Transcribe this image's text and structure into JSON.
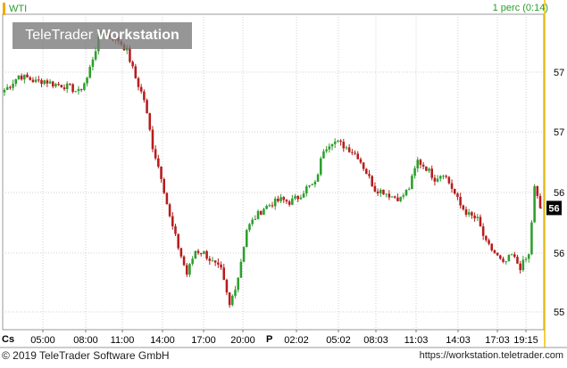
{
  "header": {
    "symbol": "WTI",
    "interval": "1 perc (0:14)",
    "accent_color": "#f2a900"
  },
  "watermark": {
    "brand": "TeleTrader",
    "product": "Workstation"
  },
  "footer": {
    "copyright": "© 2019 TeleTrader Software GmbH",
    "url": "https://workstation.teletrader.com"
  },
  "x_axis": {
    "prefix": "Cs",
    "session_marker": "P"
  },
  "chart_data": {
    "type": "candlestick",
    "title": "",
    "xlabel": "",
    "ylabel": "",
    "y_tick_labels": [
      "57",
      "57",
      "56",
      "56",
      "55"
    ],
    "x_tick_labels": [
      "05:00",
      "08:00",
      "11:00",
      "14:00",
      "17:00",
      "20:00",
      "02:02",
      "05:02",
      "08:03",
      "11:03",
      "14:03",
      "17:03",
      "19:15"
    ],
    "last_value_label": "56",
    "up_color": "#2e9e2e",
    "down_color": "#b71c1c",
    "grid": true,
    "close_path": [
      [
        0,
        56.88
      ],
      [
        2,
        56.92
      ],
      [
        5,
        57.0
      ],
      [
        8,
        56.98
      ],
      [
        11,
        56.95
      ],
      [
        14,
        56.96
      ],
      [
        17,
        56.93
      ],
      [
        20,
        56.92
      ],
      [
        23,
        56.9
      ],
      [
        26,
        56.86
      ],
      [
        29,
        56.98
      ],
      [
        31,
        57.15
      ],
      [
        34,
        57.38
      ],
      [
        37,
        57.33
      ],
      [
        40,
        57.3
      ],
      [
        43,
        57.21
      ],
      [
        46,
        56.98
      ],
      [
        49,
        56.8
      ],
      [
        52,
        56.4
      ],
      [
        55,
        56.15
      ],
      [
        58,
        55.8
      ],
      [
        61,
        55.55
      ],
      [
        64,
        55.32
      ],
      [
        67,
        55.52
      ],
      [
        70,
        55.5
      ],
      [
        73,
        55.42
      ],
      [
        76,
        55.35
      ],
      [
        79,
        55.05
      ],
      [
        82,
        55.3
      ],
      [
        85,
        55.7
      ],
      [
        88,
        55.8
      ],
      [
        91,
        55.88
      ],
      [
        94,
        55.92
      ],
      [
        97,
        55.95
      ],
      [
        100,
        55.93
      ],
      [
        103,
        55.97
      ],
      [
        106,
        56.05
      ],
      [
        109,
        56.08
      ],
      [
        112,
        56.38
      ],
      [
        115,
        56.45
      ],
      [
        118,
        56.42
      ],
      [
        121,
        56.38
      ],
      [
        124,
        56.32
      ],
      [
        127,
        56.18
      ],
      [
        130,
        56.04
      ],
      [
        133,
        56.02
      ],
      [
        136,
        55.98
      ],
      [
        139,
        55.96
      ],
      [
        142,
        56.05
      ],
      [
        145,
        56.28
      ],
      [
        148,
        56.22
      ],
      [
        151,
        56.13
      ],
      [
        154,
        56.18
      ],
      [
        157,
        56.05
      ],
      [
        160,
        55.9
      ],
      [
        163,
        55.82
      ],
      [
        166,
        55.78
      ],
      [
        169,
        55.58
      ],
      [
        172,
        55.5
      ],
      [
        175,
        55.4
      ],
      [
        178,
        55.48
      ],
      [
        181,
        55.38
      ],
      [
        184,
        55.48
      ],
      [
        186,
        56.05
      ],
      [
        188,
        55.88
      ]
    ]
  }
}
